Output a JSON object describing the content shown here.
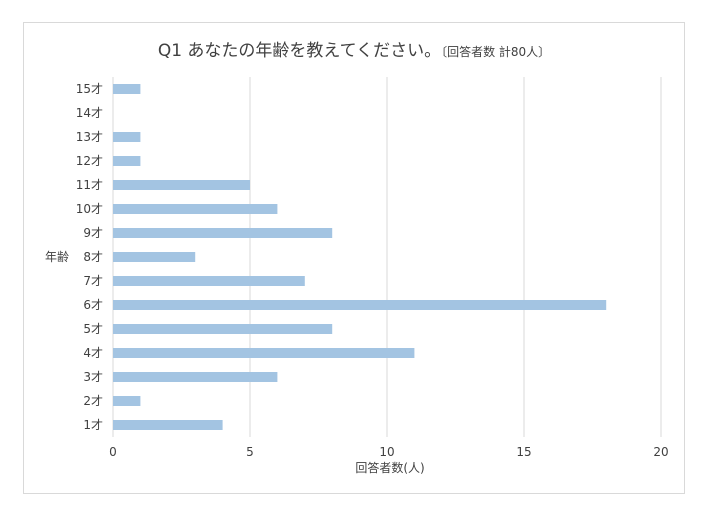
{
  "chart_data": {
    "type": "bar",
    "orientation": "horizontal",
    "title": "Q1 あなたの年齢を教えてください。",
    "subtitle": "〔回答者数 計80人〕",
    "xlabel": "回答者数(人)",
    "ylabel": "年齢",
    "xlim": [
      0,
      20
    ],
    "xticks": [
      0,
      5,
      10,
      15,
      20
    ],
    "grid": true,
    "bar_color": "#a3c4e2",
    "categories": [
      "1才",
      "2才",
      "3才",
      "4才",
      "5才",
      "6才",
      "7才",
      "8才",
      "9才",
      "10才",
      "11才",
      "12才",
      "13才",
      "14才",
      "15才"
    ],
    "values": [
      4,
      1,
      6,
      11,
      8,
      18,
      7,
      3,
      8,
      6,
      5,
      1,
      1,
      0,
      1
    ]
  }
}
